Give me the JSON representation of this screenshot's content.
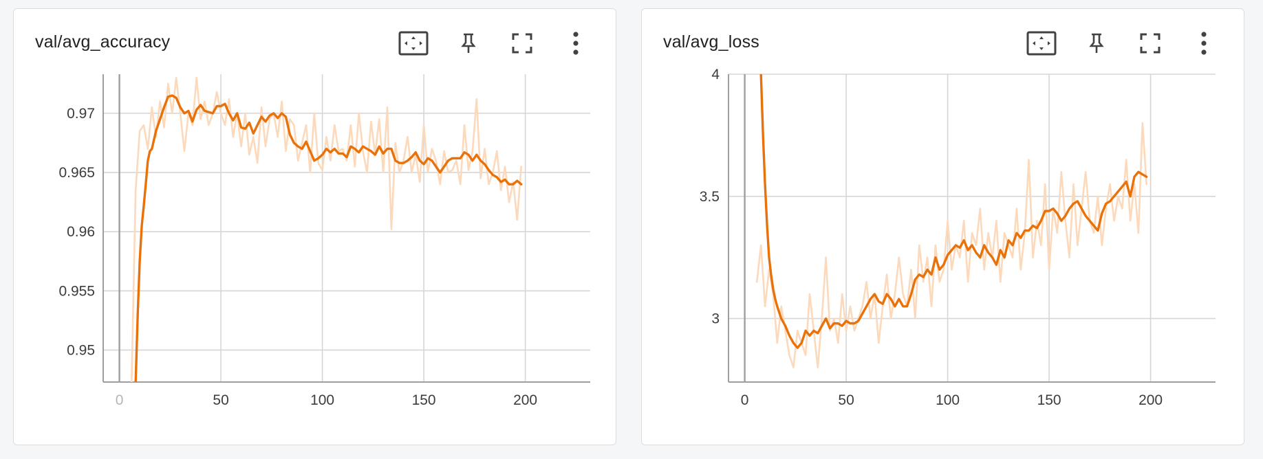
{
  "colors": {
    "smoothed": "#e8710a",
    "raw": "#fcd9bb",
    "grid": "#d6d6d6",
    "axis": "#9e9e9e"
  },
  "toolbar": {
    "icons": [
      "fit-domain-icon",
      "pin-icon",
      "fullscreen-icon",
      "more-vert-icon"
    ]
  },
  "cards": [
    {
      "title": "val/avg_accuracy"
    },
    {
      "title": "val/avg_loss"
    }
  ],
  "chart_data": [
    {
      "type": "line",
      "title": "val/avg_accuracy",
      "xlim": [
        -8,
        232
      ],
      "ylim": [
        0.9473,
        0.9733
      ],
      "x_ticks": [
        0,
        50,
        100,
        150,
        200
      ],
      "x_tick_labels": [
        "0",
        "50",
        "100",
        "150",
        "200"
      ],
      "y_ticks": [
        0.95,
        0.955,
        0.96,
        0.965,
        0.97
      ],
      "y_tick_labels": [
        "0.95",
        "0.955",
        "0.96",
        "0.965",
        "0.97"
      ],
      "grid": true,
      "series": [
        {
          "role": "raw",
          "x": [
            6,
            8,
            10,
            12,
            14,
            16,
            18,
            20,
            22,
            24,
            26,
            28,
            30,
            32,
            34,
            36,
            38,
            40,
            42,
            44,
            46,
            48,
            50,
            52,
            54,
            56,
            58,
            60,
            62,
            64,
            66,
            68,
            70,
            72,
            74,
            76,
            78,
            80,
            82,
            84,
            86,
            88,
            90,
            92,
            94,
            96,
            98,
            100,
            102,
            104,
            106,
            108,
            110,
            112,
            114,
            116,
            118,
            120,
            122,
            124,
            126,
            128,
            130,
            132,
            134,
            136,
            138,
            140,
            142,
            144,
            146,
            148,
            150,
            152,
            154,
            156,
            158,
            160,
            162,
            164,
            166,
            168,
            170,
            172,
            174,
            176,
            178,
            180,
            182,
            184,
            186,
            188,
            190,
            192,
            194,
            196,
            198
          ],
          "y": [
            0.9473,
            0.9635,
            0.9685,
            0.969,
            0.967,
            0.9705,
            0.968,
            0.971,
            0.9688,
            0.9725,
            0.97,
            0.973,
            0.97,
            0.9668,
            0.97,
            0.969,
            0.973,
            0.9695,
            0.971,
            0.969,
            0.97,
            0.9718,
            0.97,
            0.969,
            0.9712,
            0.968,
            0.97,
            0.9672,
            0.97,
            0.9665,
            0.968,
            0.9658,
            0.9705,
            0.9672,
            0.9695,
            0.97,
            0.968,
            0.971,
            0.9668,
            0.9695,
            0.969,
            0.966,
            0.9675,
            0.969,
            0.965,
            0.97,
            0.9658,
            0.9652,
            0.968,
            0.966,
            0.969,
            0.9668,
            0.967,
            0.966,
            0.969,
            0.9655,
            0.97,
            0.9668,
            0.965,
            0.9693,
            0.9665,
            0.9695,
            0.965,
            0.9705,
            0.9602,
            0.9675,
            0.965,
            0.966,
            0.968,
            0.965,
            0.9665,
            0.9642,
            0.969,
            0.965,
            0.967,
            0.966,
            0.964,
            0.9668,
            0.965,
            0.9652,
            0.966,
            0.964,
            0.969,
            0.9652,
            0.9668,
            0.9712,
            0.9645,
            0.967,
            0.964,
            0.965,
            0.9668,
            0.9635,
            0.9655,
            0.9625,
            0.9642,
            0.961,
            0.9655
          ]
        },
        {
          "role": "smoothed",
          "x": [
            8,
            9,
            10,
            11,
            12,
            13,
            14,
            15,
            16,
            18,
            20,
            22,
            24,
            26,
            28,
            30,
            32,
            34,
            36,
            38,
            40,
            42,
            44,
            46,
            48,
            50,
            52,
            54,
            56,
            58,
            60,
            62,
            64,
            66,
            68,
            70,
            72,
            74,
            76,
            78,
            80,
            82,
            84,
            86,
            88,
            90,
            92,
            94,
            96,
            98,
            100,
            102,
            104,
            106,
            108,
            110,
            112,
            114,
            116,
            118,
            120,
            122,
            124,
            126,
            128,
            130,
            132,
            134,
            136,
            138,
            140,
            142,
            144,
            146,
            148,
            150,
            152,
            154,
            156,
            158,
            160,
            162,
            164,
            166,
            168,
            170,
            172,
            174,
            176,
            178,
            180,
            182,
            184,
            186,
            188,
            190,
            192,
            194,
            196,
            198
          ],
          "y": [
            0.9473,
            0.953,
            0.9575,
            0.9605,
            0.9622,
            0.964,
            0.966,
            0.9668,
            0.967,
            0.9685,
            0.9695,
            0.9705,
            0.9714,
            0.9715,
            0.9713,
            0.9705,
            0.97,
            0.9702,
            0.9693,
            0.9703,
            0.9707,
            0.9702,
            0.9701,
            0.97,
            0.9706,
            0.9706,
            0.9708,
            0.97,
            0.9694,
            0.97,
            0.9688,
            0.9687,
            0.9692,
            0.9683,
            0.969,
            0.9697,
            0.9693,
            0.9698,
            0.97,
            0.9696,
            0.97,
            0.9697,
            0.9682,
            0.9675,
            0.9672,
            0.967,
            0.9676,
            0.9668,
            0.966,
            0.9662,
            0.9665,
            0.967,
            0.9667,
            0.967,
            0.9666,
            0.9666,
            0.9663,
            0.9672,
            0.967,
            0.9667,
            0.9672,
            0.967,
            0.9668,
            0.9665,
            0.9672,
            0.9666,
            0.967,
            0.967,
            0.966,
            0.9658,
            0.9658,
            0.966,
            0.9663,
            0.9667,
            0.966,
            0.9657,
            0.9662,
            0.966,
            0.9655,
            0.965,
            0.9655,
            0.966,
            0.9662,
            0.9662,
            0.9662,
            0.9667,
            0.9665,
            0.966,
            0.9665,
            0.966,
            0.9657,
            0.9652,
            0.9648,
            0.9646,
            0.9642,
            0.9644,
            0.964,
            0.964,
            0.9643,
            0.964
          ]
        }
      ]
    },
    {
      "type": "line",
      "title": "val/avg_loss",
      "xlim": [
        -8,
        232
      ],
      "ylim": [
        2.74,
        4.0
      ],
      "x_ticks": [
        0,
        50,
        100,
        150,
        200
      ],
      "x_tick_labels": [
        "0",
        "50",
        "100",
        "150",
        "200"
      ],
      "y_ticks": [
        3.0,
        3.5,
        4.0
      ],
      "y_tick_labels": [
        "3",
        "3.5",
        "4"
      ],
      "grid": true,
      "series": [
        {
          "role": "raw",
          "x": [
            6,
            8,
            10,
            12,
            14,
            16,
            18,
            20,
            22,
            24,
            26,
            28,
            30,
            32,
            34,
            36,
            38,
            40,
            42,
            44,
            46,
            48,
            50,
            52,
            54,
            56,
            58,
            60,
            62,
            64,
            66,
            68,
            70,
            72,
            74,
            76,
            78,
            80,
            82,
            84,
            86,
            88,
            90,
            92,
            94,
            96,
            98,
            100,
            102,
            104,
            106,
            108,
            110,
            112,
            114,
            116,
            118,
            120,
            122,
            124,
            126,
            128,
            130,
            132,
            134,
            136,
            138,
            140,
            142,
            144,
            146,
            148,
            150,
            152,
            154,
            156,
            158,
            160,
            162,
            164,
            166,
            168,
            170,
            172,
            174,
            176,
            178,
            180,
            182,
            184,
            186,
            188,
            190,
            192,
            194,
            196,
            198
          ],
          "y": [
            3.15,
            3.3,
            3.05,
            3.2,
            3.1,
            2.9,
            3.05,
            2.95,
            2.85,
            2.8,
            2.95,
            2.9,
            2.85,
            3.1,
            2.95,
            2.8,
            3.0,
            3.25,
            2.95,
            3.0,
            2.9,
            3.1,
            2.95,
            3.05,
            2.95,
            3.0,
            3.05,
            3.15,
            3.0,
            3.1,
            2.9,
            3.05,
            3.18,
            3.0,
            3.1,
            3.25,
            3.1,
            3.05,
            3.2,
            3.0,
            3.3,
            3.15,
            3.25,
            3.05,
            3.3,
            3.15,
            3.2,
            3.4,
            3.2,
            3.3,
            3.25,
            3.4,
            3.15,
            3.35,
            3.3,
            3.45,
            3.2,
            3.35,
            3.25,
            3.4,
            3.15,
            3.35,
            3.3,
            3.25,
            3.45,
            3.2,
            3.35,
            3.65,
            3.25,
            3.4,
            3.3,
            3.55,
            3.2,
            3.45,
            3.35,
            3.6,
            3.4,
            3.25,
            3.55,
            3.3,
            3.45,
            3.6,
            3.4,
            3.35,
            3.5,
            3.3,
            3.45,
            3.55,
            3.4,
            3.5,
            3.45,
            3.65,
            3.4,
            3.55,
            3.35,
            3.8,
            3.55
          ]
        },
        {
          "role": "smoothed",
          "x": [
            8,
            9,
            10,
            11,
            12,
            13,
            14,
            15,
            16,
            18,
            20,
            22,
            24,
            26,
            28,
            30,
            32,
            34,
            36,
            38,
            40,
            42,
            44,
            46,
            48,
            50,
            52,
            54,
            56,
            58,
            60,
            62,
            64,
            66,
            68,
            70,
            72,
            74,
            76,
            78,
            80,
            82,
            84,
            86,
            88,
            90,
            92,
            94,
            96,
            98,
            100,
            102,
            104,
            106,
            108,
            110,
            112,
            114,
            116,
            118,
            120,
            122,
            124,
            126,
            128,
            130,
            132,
            134,
            136,
            138,
            140,
            142,
            144,
            146,
            148,
            150,
            152,
            154,
            156,
            158,
            160,
            162,
            164,
            166,
            168,
            170,
            172,
            174,
            176,
            178,
            180,
            182,
            184,
            186,
            188,
            190,
            192,
            194,
            196,
            198
          ],
          "y": [
            4.0,
            3.75,
            3.55,
            3.38,
            3.25,
            3.18,
            3.12,
            3.08,
            3.05,
            3.0,
            2.97,
            2.93,
            2.9,
            2.88,
            2.9,
            2.95,
            2.93,
            2.95,
            2.94,
            2.97,
            3.0,
            2.96,
            2.98,
            2.98,
            2.97,
            2.99,
            2.98,
            2.98,
            2.99,
            3.02,
            3.05,
            3.08,
            3.1,
            3.07,
            3.06,
            3.1,
            3.08,
            3.05,
            3.08,
            3.05,
            3.05,
            3.1,
            3.16,
            3.18,
            3.17,
            3.2,
            3.18,
            3.25,
            3.2,
            3.22,
            3.26,
            3.28,
            3.3,
            3.29,
            3.32,
            3.28,
            3.3,
            3.27,
            3.25,
            3.3,
            3.27,
            3.25,
            3.22,
            3.28,
            3.25,
            3.32,
            3.3,
            3.35,
            3.33,
            3.36,
            3.36,
            3.38,
            3.37,
            3.4,
            3.44,
            3.44,
            3.45,
            3.43,
            3.4,
            3.42,
            3.45,
            3.47,
            3.48,
            3.45,
            3.42,
            3.4,
            3.38,
            3.36,
            3.43,
            3.47,
            3.48,
            3.5,
            3.52,
            3.54,
            3.56,
            3.5,
            3.58,
            3.6,
            3.59,
            3.58
          ]
        }
      ]
    }
  ]
}
